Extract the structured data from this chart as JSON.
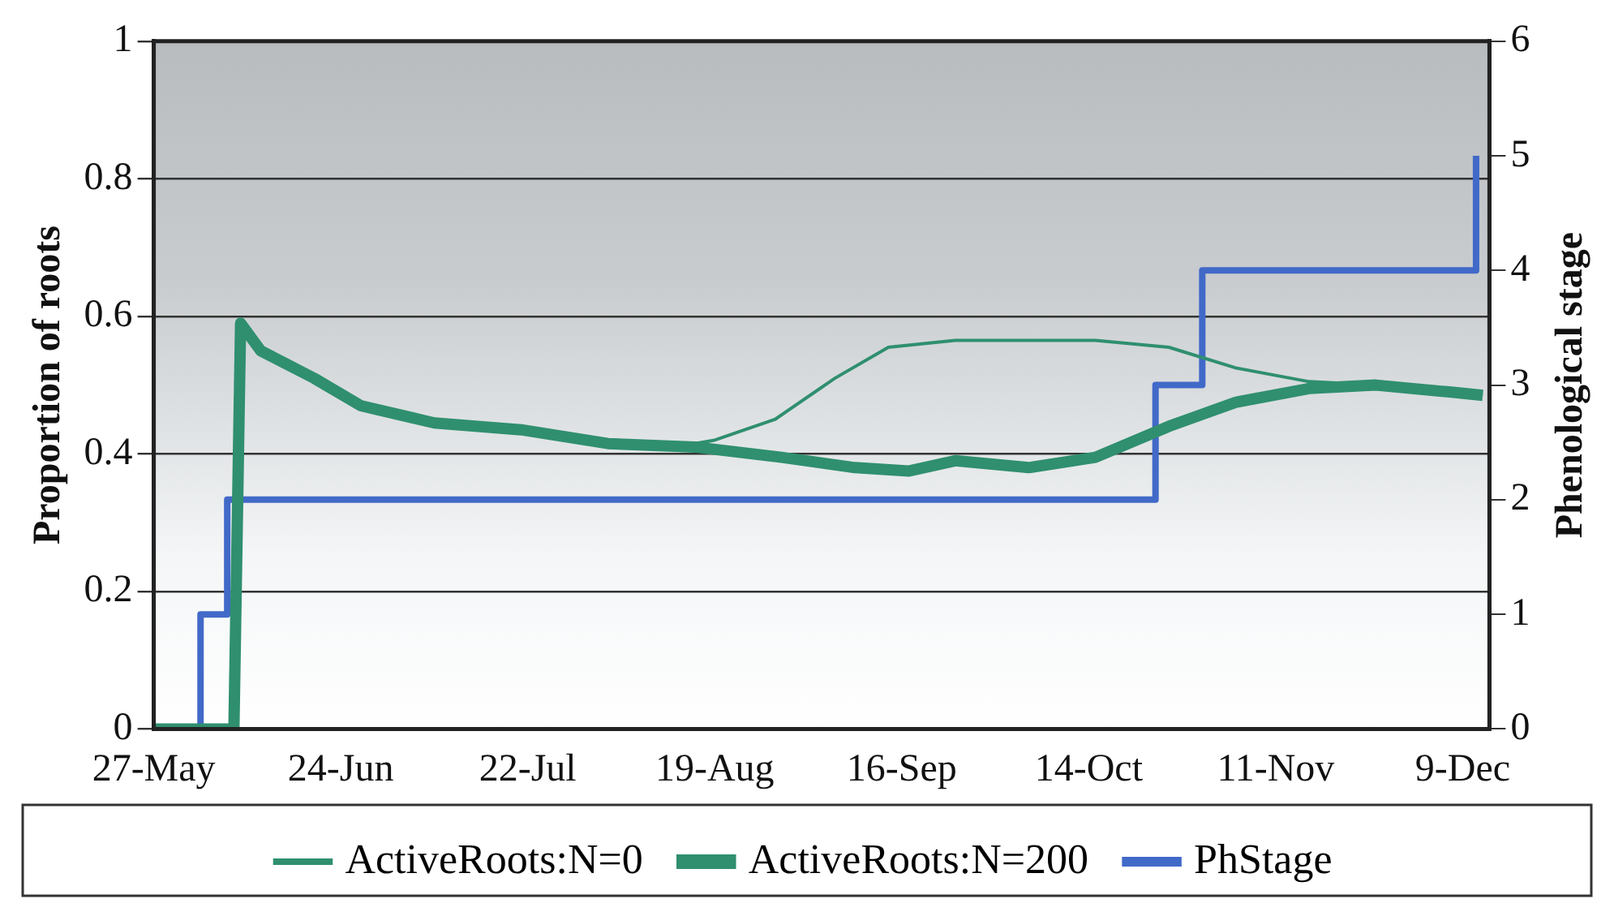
{
  "chart_data": {
    "type": "line",
    "ylabel": "Proportion of roots",
    "y2label": "Phenological stage",
    "xlim": [
      "--05-27",
      "--12-13"
    ],
    "xticks": [
      {
        "value": "--05-27",
        "label": "27-May"
      },
      {
        "value": "--06-24",
        "label": "24-Jun"
      },
      {
        "value": "--07-22",
        "label": "22-Jul"
      },
      {
        "value": "--08-19",
        "label": "19-Aug"
      },
      {
        "value": "--09-16",
        "label": "16-Sep"
      },
      {
        "value": "--10-14",
        "label": "14-Oct"
      },
      {
        "value": "--11-11",
        "label": "11-Nov"
      },
      {
        "value": "--12-09",
        "label": "9-Dec"
      }
    ],
    "ylim": [
      0,
      1
    ],
    "yticks": [
      0,
      0.2,
      0.4,
      0.6,
      0.8,
      1
    ],
    "y2lim": [
      0,
      6
    ],
    "y2ticks": [
      0,
      1,
      2,
      3,
      4,
      5,
      6
    ],
    "grid": "y",
    "legend": "bottom",
    "marker": "none",
    "line_style": "solid",
    "series": [
      {
        "name": "ActiveRoots:N=0",
        "color": "#2f8f6f",
        "type": "line",
        "x": [
          "--05-27",
          "--06-08",
          "--06-09",
          "--06-12",
          "--06-20",
          "--06-27",
          "--07-08",
          "--07-21",
          "--08-03",
          "--08-13",
          "--08-19",
          "--08-28",
          "--09-06",
          "--09-14",
          "--09-24",
          "--10-15",
          "--10-26",
          "--11-05",
          "--11-16",
          "--11-26",
          "--12-07",
          "--12-12"
        ],
        "values": [
          0,
          0,
          0.59,
          0.55,
          0.51,
          0.47,
          0.445,
          0.435,
          0.415,
          0.41,
          0.42,
          0.45,
          0.51,
          0.555,
          0.565,
          0.565,
          0.555,
          0.525,
          0.505,
          0.5,
          0.49,
          0.485
        ]
      },
      {
        "name": "ActiveRoots:N=200",
        "color": "#2f8f6f",
        "type": "line",
        "x": [
          "--05-27",
          "--06-08",
          "--06-09",
          "--06-12",
          "--06-20",
          "--06-27",
          "--07-08",
          "--07-21",
          "--08-03",
          "--08-16",
          "--08-29",
          "--09-09",
          "--09-17",
          "--09-24",
          "--10-05",
          "--10-15",
          "--10-26",
          "--11-05",
          "--11-16",
          "--11-26",
          "--12-07",
          "--12-12"
        ],
        "values": [
          0,
          0,
          0.59,
          0.55,
          0.51,
          0.47,
          0.445,
          0.435,
          0.415,
          0.41,
          0.395,
          0.38,
          0.375,
          0.39,
          0.38,
          0.395,
          0.44,
          0.475,
          0.495,
          0.5,
          0.49,
          0.485
        ]
      },
      {
        "name": "PhStage",
        "color": "#4169c8",
        "type": "step",
        "axis": "y2",
        "x": [
          "--05-27",
          "--06-03",
          "--06-07",
          "--10-24",
          "--10-31",
          "--12-11"
        ],
        "values": [
          0,
          1,
          2,
          3,
          4,
          5
        ]
      }
    ]
  }
}
